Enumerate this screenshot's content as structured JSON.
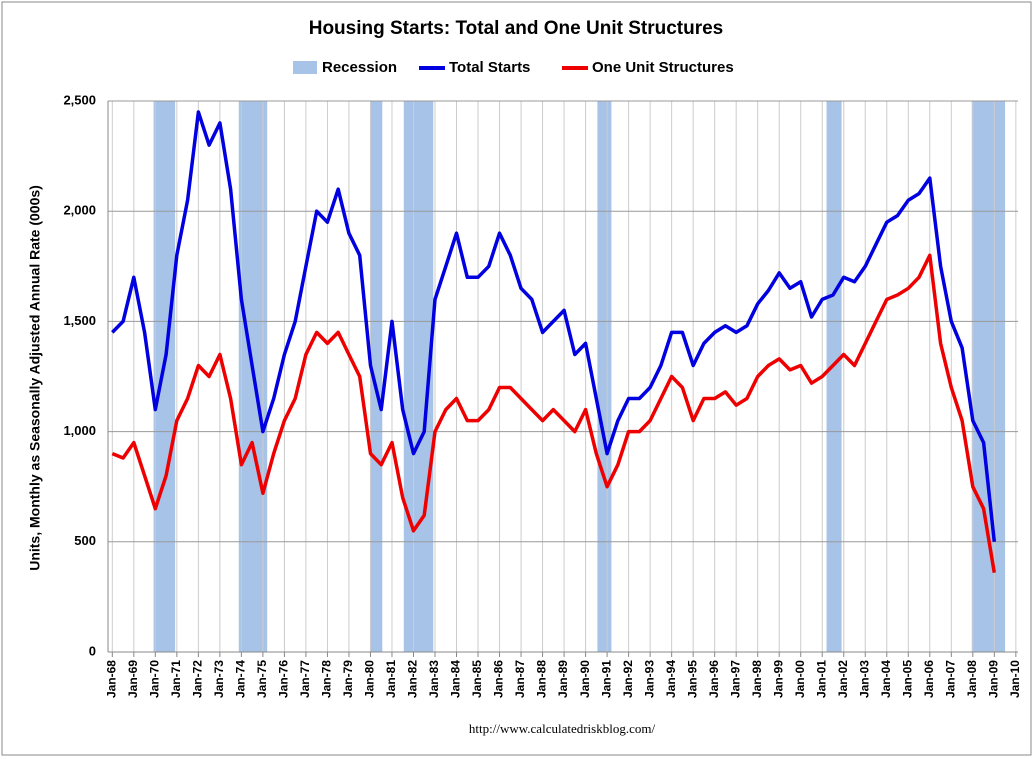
{
  "chart_data": {
    "type": "line",
    "title": "Housing Starts: Total and One Unit Structures",
    "y_label": "Units, Monthly as Seasonally Adjusted Annual Rate (000s)",
    "source": "http://www.calculatedriskblog.com/",
    "x": [
      1968,
      1968.5,
      1969,
      1969.5,
      1970,
      1970.5,
      1971,
      1971.5,
      1972,
      1972.5,
      1973,
      1973.5,
      1974,
      1974.5,
      1975,
      1975.5,
      1976,
      1976.5,
      1977,
      1977.5,
      1978,
      1978.5,
      1979,
      1979.5,
      1980,
      1980.5,
      1981,
      1981.5,
      1982,
      1982.5,
      1983,
      1983.5,
      1984,
      1984.5,
      1985,
      1985.5,
      1986,
      1986.5,
      1987,
      1987.5,
      1988,
      1988.5,
      1989,
      1989.5,
      1990,
      1990.5,
      1991,
      1991.5,
      1992,
      1992.5,
      1993,
      1993.5,
      1994,
      1994.5,
      1995,
      1995.5,
      1996,
      1996.5,
      1997,
      1997.5,
      1998,
      1998.5,
      1999,
      1999.5,
      2000,
      2000.5,
      2001,
      2001.5,
      2002,
      2002.5,
      2003,
      2003.5,
      2004,
      2004.5,
      2005,
      2005.5,
      2006,
      2006.5,
      2007,
      2007.5,
      2008,
      2008.5,
      2009
    ],
    "series": [
      {
        "name": "Total Starts",
        "color": "#0000e0",
        "values": [
          1450,
          1500,
          1700,
          1450,
          1100,
          1350,
          1800,
          2050,
          2450,
          2300,
          2400,
          2100,
          1600,
          1300,
          1000,
          1150,
          1350,
          1500,
          1750,
          2000,
          1950,
          2100,
          1900,
          1800,
          1300,
          1100,
          1500,
          1100,
          900,
          1000,
          1600,
          1750,
          1900,
          1700,
          1700,
          1750,
          1900,
          1800,
          1650,
          1600,
          1450,
          1500,
          1550,
          1350,
          1400,
          1150,
          900,
          1050,
          1150,
          1150,
          1200,
          1300,
          1450,
          1450,
          1300,
          1400,
          1450,
          1480,
          1450,
          1480,
          1580,
          1640,
          1720,
          1650,
          1680,
          1520,
          1600,
          1620,
          1700,
          1680,
          1750,
          1850,
          1950,
          1980,
          2050,
          2080,
          2150,
          1750,
          1500,
          1380,
          1050,
          950,
          500
        ]
      },
      {
        "name": "One Unit Structures",
        "color": "#ee0000",
        "values": [
          900,
          880,
          950,
          800,
          650,
          800,
          1050,
          1150,
          1300,
          1250,
          1350,
          1150,
          850,
          950,
          720,
          900,
          1050,
          1150,
          1350,
          1450,
          1400,
          1450,
          1350,
          1250,
          900,
          850,
          950,
          700,
          550,
          620,
          1000,
          1100,
          1150,
          1050,
          1050,
          1100,
          1200,
          1200,
          1150,
          1100,
          1050,
          1100,
          1050,
          1000,
          1100,
          900,
          750,
          850,
          1000,
          1000,
          1050,
          1150,
          1250,
          1200,
          1050,
          1150,
          1150,
          1180,
          1120,
          1150,
          1250,
          1300,
          1330,
          1280,
          1300,
          1220,
          1250,
          1300,
          1350,
          1300,
          1400,
          1500,
          1600,
          1620,
          1650,
          1700,
          1800,
          1400,
          1200,
          1050,
          750,
          650,
          360
        ]
      }
    ],
    "recessions": {
      "name": "Recession",
      "color": "#a7c3e8",
      "spans": [
        [
          1969.92,
          1970.92
        ],
        [
          1973.88,
          1975.2
        ],
        [
          1980.0,
          1980.55
        ],
        [
          1981.55,
          1982.92
        ],
        [
          1990.55,
          1991.2
        ],
        [
          2001.2,
          2001.9
        ],
        [
          2007.95,
          2009.5
        ]
      ]
    },
    "xlim": [
      1967.8,
      2010.1
    ],
    "ylim": [
      0,
      2500
    ],
    "yticks": [
      0,
      500,
      {
        "value": 1000,
        "label": "1,000"
      },
      {
        "value": 1500,
        "label": "1,500"
      },
      {
        "value": 2000,
        "label": "2,000"
      },
      {
        "value": 2500,
        "label": "2,500"
      }
    ],
    "xticks": [
      {
        "value": 1968,
        "label": "Jan-68"
      },
      {
        "value": 1969,
        "label": "Jan-69"
      },
      {
        "value": 1970,
        "label": "Jan-70"
      },
      {
        "value": 1971,
        "label": "Jan-71"
      },
      {
        "value": 1972,
        "label": "Jan-72"
      },
      {
        "value": 1973,
        "label": "Jan-73"
      },
      {
        "value": 1974,
        "label": "Jan-74"
      },
      {
        "value": 1975,
        "label": "Jan-75"
      },
      {
        "value": 1976,
        "label": "Jan-76"
      },
      {
        "value": 1977,
        "label": "Jan-77"
      },
      {
        "value": 1978,
        "label": "Jan-78"
      },
      {
        "value": 1979,
        "label": "Jan-79"
      },
      {
        "value": 1980,
        "label": "Jan-80"
      },
      {
        "value": 1981,
        "label": "Jan-81"
      },
      {
        "value": 1982,
        "label": "Jan-82"
      },
      {
        "value": 1983,
        "label": "Jan-83"
      },
      {
        "value": 1984,
        "label": "Jan-84"
      },
      {
        "value": 1985,
        "label": "Jan-85"
      },
      {
        "value": 1986,
        "label": "Jan-86"
      },
      {
        "value": 1987,
        "label": "Jan-87"
      },
      {
        "value": 1988,
        "label": "Jan-88"
      },
      {
        "value": 1989,
        "label": "Jan-89"
      },
      {
        "value": 1990,
        "label": "Jan-90"
      },
      {
        "value": 1991,
        "label": "Jan-91"
      },
      {
        "value": 1992,
        "label": "Jan-92"
      },
      {
        "value": 1993,
        "label": "Jan-93"
      },
      {
        "value": 1994,
        "label": "Jan-94"
      },
      {
        "value": 1995,
        "label": "Jan-95"
      },
      {
        "value": 1996,
        "label": "Jan-96"
      },
      {
        "value": 1997,
        "label": "Jan-97"
      },
      {
        "value": 1998,
        "label": "Jan-98"
      },
      {
        "value": 1999,
        "label": "Jan-99"
      },
      {
        "value": 2000,
        "label": "Jan-00"
      },
      {
        "value": 2001,
        "label": "Jan-01"
      },
      {
        "value": 2002,
        "label": "Jan-02"
      },
      {
        "value": 2003,
        "label": "Jan-03"
      },
      {
        "value": 2004,
        "label": "Jan-04"
      },
      {
        "value": 2005,
        "label": "Jan-05"
      },
      {
        "value": 2006,
        "label": "Jan-06"
      },
      {
        "value": 2007,
        "label": "Jan-07"
      },
      {
        "value": 2008,
        "label": "Jan-08"
      },
      {
        "value": 2009,
        "label": "Jan-09"
      },
      {
        "value": 2010,
        "label": "Jan-10"
      }
    ],
    "grid": true
  }
}
